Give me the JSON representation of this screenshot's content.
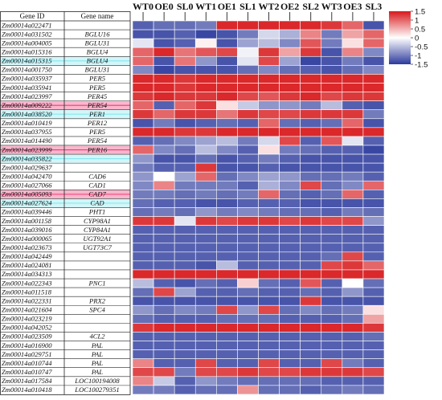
{
  "chart_data": {
    "type": "heatmap",
    "table_headers": [
      "Gene ID",
      "Gene name"
    ],
    "columns": [
      "WT0",
      "OE0",
      "SL0",
      "WT1",
      "OE1",
      "SL1",
      "WT2",
      "OE2",
      "SL2",
      "WT3",
      "OE3",
      "SL3"
    ],
    "rows": [
      {
        "id": "Zm00014a022471",
        "name": "",
        "values": [
          -1.2,
          -1.1,
          -1.1,
          -1.0,
          1.4,
          1.4,
          1.4,
          1.4,
          1.4,
          1.3,
          1.0,
          -1.3
        ]
      },
      {
        "id": "Zm00014a031502",
        "name": "BGLU16",
        "values": [
          -1.3,
          -1.3,
          -1.2,
          -1.4,
          -1.3,
          -1.0,
          -0.3,
          -0.6,
          0.8,
          -1.0,
          0.6,
          1.0
        ]
      },
      {
        "id": "Zm00014a004005",
        "name": "BGLU31",
        "values": [
          -0.2,
          -1.3,
          -1.2,
          0.1,
          -1.3,
          -0.7,
          -0.5,
          -0.9,
          1.1,
          -1.0,
          0.2,
          1.0
        ]
      },
      {
        "id": "Zm00014a015316",
        "name": "BGLU4",
        "values": [
          1.0,
          1.4,
          0.9,
          1.1,
          1.2,
          -0.1,
          1.3,
          0.6,
          1.3,
          -1.3,
          0.8,
          -0.9
        ]
      },
      {
        "id": "Zm00014a015315",
        "name": "BGLU4",
        "values": [
          1.0,
          -1.3,
          0.9,
          -0.8,
          -1.3,
          -0.2,
          1.2,
          -0.7,
          -1.4,
          -1.3,
          -1.0,
          -1.3
        ]
      },
      {
        "id": "Zm00014a001750",
        "name": "BGLU31",
        "values": [
          -0.9,
          -1.4,
          -1.3,
          -1.3,
          -1.3,
          -1.1,
          -0.9,
          -1.1,
          -1.2,
          -1.3,
          -1.1,
          -0.9
        ]
      },
      {
        "id": "Zm00014a035937",
        "name": "PER5",
        "values": [
          1.4,
          1.4,
          1.3,
          1.4,
          1.4,
          1.4,
          1.4,
          1.4,
          1.4,
          1.4,
          1.4,
          1.4
        ]
      },
      {
        "id": "Zm00014a035941",
        "name": "PER5",
        "values": [
          1.4,
          1.4,
          1.3,
          1.4,
          1.4,
          1.4,
          1.4,
          1.4,
          1.4,
          1.4,
          1.4,
          1.4
        ]
      },
      {
        "id": "Zm00014a023997",
        "name": "PER45",
        "values": [
          1.3,
          1.4,
          1.3,
          1.3,
          1.4,
          1.2,
          1.1,
          1.3,
          1.4,
          1.2,
          1.3,
          1.3
        ]
      },
      {
        "id": "Zm00014a009222",
        "name": "PER54",
        "values": [
          1.0,
          -1.2,
          1.0,
          1.3,
          0.2,
          -0.4,
          -0.8,
          -0.8,
          -1.0,
          -0.5,
          -1.2,
          -1.3
        ]
      },
      {
        "id": "Zm00014a038520",
        "name": "PER1",
        "values": [
          1.3,
          1.0,
          1.3,
          1.3,
          0.9,
          1.3,
          1.2,
          1.2,
          1.3,
          1.3,
          1.3,
          -1.0
        ]
      },
      {
        "id": "Zm00014a010419",
        "name": "PER12",
        "values": [
          -1.3,
          -1.0,
          -1.3,
          -1.2,
          -1.1,
          -1.2,
          1.0,
          -1.1,
          -1.2,
          -1.1,
          1.0,
          -1.3
        ]
      },
      {
        "id": "Zm00014a037955",
        "name": "PER5",
        "values": [
          1.4,
          1.4,
          1.3,
          1.3,
          1.4,
          1.4,
          1.4,
          1.4,
          1.4,
          1.4,
          1.4,
          1.4
        ]
      },
      {
        "id": "Zm00014a014490",
        "name": "PER54",
        "values": [
          -1.2,
          -1.1,
          -0.9,
          -0.7,
          -0.5,
          -1.0,
          -0.3,
          1.2,
          -1.2,
          1.1,
          -0.2,
          -1.2
        ]
      },
      {
        "id": "Zm00014a023999",
        "name": "PER16",
        "values": [
          1.0,
          -0.9,
          -1.1,
          -0.5,
          -0.9,
          -1.2,
          0.2,
          -1.0,
          -1.1,
          -1.2,
          -1.2,
          -1.4
        ]
      },
      {
        "id": "Zm00014a035822",
        "name": "",
        "values": [
          -0.8,
          -1.3,
          -1.3,
          -1.1,
          -1.3,
          -1.2,
          -1.0,
          -1.2,
          -1.3,
          -1.3,
          -1.3,
          -1.3
        ]
      },
      {
        "id": "Zm00014a029637",
        "name": "",
        "values": [
          -1.0,
          -1.2,
          -1.2,
          1.3,
          -1.3,
          -1.3,
          -1.2,
          -1.3,
          -1.3,
          -1.3,
          -1.3,
          -1.3
        ]
      },
      {
        "id": "Zm00014a042470",
        "name": "CAD6",
        "values": [
          -0.8,
          0.0,
          -0.7,
          1.0,
          -1.1,
          -0.9,
          -0.7,
          -0.8,
          -1.1,
          -1.1,
          -1.0,
          -1.2
        ]
      },
      {
        "id": "Zm00014a027066",
        "name": "CAD1",
        "values": [
          -0.9,
          0.8,
          -1.0,
          -1.0,
          -1.0,
          -1.2,
          -0.6,
          -0.9,
          1.2,
          -1.1,
          -0.9,
          1.0
        ]
      },
      {
        "id": "Zm00014a005093",
        "name": "CAD7",
        "values": [
          -1.0,
          -1.0,
          -1.1,
          -1.0,
          -1.1,
          -1.0,
          1.0,
          -1.1,
          -1.2,
          -1.1,
          1.0,
          -1.2
        ]
      },
      {
        "id": "Zm00014a027624",
        "name": "CAD",
        "values": [
          -1.1,
          -1.2,
          -1.2,
          -1.3,
          -1.3,
          -1.2,
          -1.2,
          -1.2,
          -1.3,
          -1.3,
          -1.3,
          -1.3
        ]
      },
      {
        "id": "Zm00014a039446",
        "name": "PHT1",
        "values": [
          -1.1,
          -1.0,
          -1.1,
          -0.8,
          -1.0,
          -0.9,
          -1.0,
          -1.1,
          -1.1,
          -1.2,
          -1.0,
          -1.1
        ]
      },
      {
        "id": "Zm00014a001158",
        "name": "CYP98A1",
        "values": [
          1.3,
          1.3,
          -0.2,
          1.3,
          1.2,
          1.3,
          1.3,
          1.2,
          1.3,
          1.2,
          1.2,
          -0.8
        ]
      },
      {
        "id": "Zm00014a039016",
        "name": "CYP84A1",
        "values": [
          -1.2,
          -1.2,
          -1.2,
          -1.2,
          -1.2,
          -1.2,
          -1.2,
          -1.2,
          -1.2,
          -1.2,
          -1.2,
          -1.2
        ]
      },
      {
        "id": "Zm00014a000065",
        "name": "UGT92A1",
        "values": [
          -1.2,
          -1.2,
          -1.2,
          -1.2,
          -1.2,
          -1.2,
          -1.2,
          -1.2,
          -1.2,
          -1.2,
          -1.2,
          -1.2
        ]
      },
      {
        "id": "Zm00014a023673",
        "name": "UGT73C7",
        "values": [
          -1.2,
          -1.2,
          -1.2,
          -1.2,
          -1.2,
          -1.2,
          -1.2,
          -1.2,
          -1.2,
          -1.2,
          -1.2,
          -1.2
        ]
      },
      {
        "id": "Zm00014a042449",
        "name": "",
        "values": [
          -1.2,
          -1.2,
          -1.2,
          -1.2,
          -1.2,
          -1.2,
          -1.2,
          -1.2,
          -1.2,
          -1.1,
          1.2,
          -1.2
        ]
      },
      {
        "id": "Zm00014a024081",
        "name": "",
        "values": [
          -1.2,
          -1.2,
          -1.2,
          -1.3,
          -0.5,
          -1.2,
          -1.2,
          -1.2,
          -1.2,
          1.2,
          1.3,
          1.0
        ]
      },
      {
        "id": "Zm00014a034313",
        "name": "",
        "values": [
          1.4,
          1.4,
          1.4,
          1.4,
          1.4,
          1.4,
          1.4,
          1.4,
          1.4,
          1.4,
          1.4,
          1.4
        ]
      },
      {
        "id": "Zm00014a022343",
        "name": "PNC1",
        "values": [
          -0.5,
          -1.2,
          -1.3,
          -1.1,
          -1.2,
          0.3,
          -1.1,
          -1.2,
          1.1,
          -1.2,
          0.0,
          -1.1
        ]
      },
      {
        "id": "Zm00014a011518",
        "name": "",
        "values": [
          -1.1,
          1.2,
          -0.7,
          -1.2,
          -1.2,
          -1.1,
          -1.2,
          -1.2,
          -1.1,
          -1.2,
          -0.8,
          -1.2
        ]
      },
      {
        "id": "Zm00014a022331",
        "name": "PRX2",
        "values": [
          -1.3,
          -1.3,
          -1.3,
          -1.3,
          -1.3,
          -1.3,
          -1.3,
          -1.3,
          1.3,
          -1.3,
          -1.3,
          -1.3
        ]
      },
      {
        "id": "Zm00014a021604",
        "name": "SPC4",
        "values": [
          -0.8,
          -1.1,
          -0.9,
          -1.0,
          1.2,
          -0.8,
          1.2,
          -1.1,
          -0.9,
          -1.1,
          -1.0,
          0.2
        ]
      },
      {
        "id": "Zm00014a023219",
        "name": "",
        "values": [
          -1.1,
          -1.2,
          -1.2,
          -1.2,
          -1.1,
          -1.1,
          -1.1,
          -1.2,
          -1.2,
          -1.2,
          -1.1,
          0.6
        ]
      },
      {
        "id": "Zm00014a042052",
        "name": "",
        "values": [
          1.3,
          1.4,
          1.4,
          1.4,
          1.4,
          1.4,
          1.4,
          1.4,
          1.4,
          1.4,
          1.4,
          1.3
        ]
      },
      {
        "id": "Zm00014a023509",
        "name": "4CL2",
        "values": [
          -1.2,
          -1.2,
          -1.2,
          -1.2,
          -1.2,
          -1.2,
          -1.2,
          -1.2,
          -1.2,
          -1.2,
          -1.2,
          -1.1
        ]
      },
      {
        "id": "Zm00014a016900",
        "name": "PAL",
        "values": [
          -1.2,
          -1.2,
          -1.2,
          -1.2,
          -1.2,
          -1.2,
          -1.2,
          -1.2,
          -1.2,
          -1.2,
          -1.2,
          -1.2
        ]
      },
      {
        "id": "Zm00014a029751",
        "name": "PAL",
        "values": [
          -1.2,
          -1.2,
          -1.2,
          -1.2,
          -1.2,
          -1.2,
          -1.2,
          -1.2,
          -1.2,
          -1.2,
          -1.2,
          -1.2
        ]
      },
      {
        "id": "Zm00014a010744",
        "name": "PAL",
        "values": [
          0.8,
          -1.2,
          -1.2,
          1.2,
          -1.2,
          -1.2,
          1.2,
          -1.2,
          -1.2,
          1.2,
          -1.0,
          -1.2
        ]
      },
      {
        "id": "Zm00014a010747",
        "name": "PAL",
        "values": [
          1.2,
          1.2,
          -1.0,
          1.2,
          1.2,
          1.3,
          1.2,
          1.2,
          1.3,
          1.3,
          1.3,
          1.2
        ]
      },
      {
        "id": "Zm00014a017584",
        "name": "LOC100194008",
        "values": [
          0.8,
          -0.4,
          -1.2,
          -0.8,
          -1.0,
          -1.1,
          -1.1,
          -1.1,
          -1.1,
          -1.2,
          -1.2,
          -1.2
        ]
      },
      {
        "id": "Zm00014a010418",
        "name": "LOC100279351",
        "values": [
          -1.0,
          -1.0,
          -1.2,
          -1.1,
          -1.1,
          0.7,
          -1.1,
          -1.1,
          -1.2,
          -1.1,
          -1.0,
          -1.1
        ]
      }
    ],
    "highlighted_rows": [
      {
        "index": 4,
        "color": "#7ee6ee"
      },
      {
        "index": 9,
        "color": "#ee2f6e"
      },
      {
        "index": 10,
        "color": "#7ee6ee"
      },
      {
        "index": 14,
        "color": "#ee2f6e"
      },
      {
        "index": 15,
        "color": "#7ee6ee"
      },
      {
        "index": 19,
        "color": "#ee2f6e"
      },
      {
        "index": 20,
        "color": "#7ee6ee"
      }
    ],
    "colorscale": {
      "min": -1.5,
      "max": 1.5,
      "low_color": "#2b3a9c",
      "mid_color": "#ffffff",
      "high_color": "#d7191c",
      "ticks": [
        1.5,
        1,
        0.5,
        0,
        -0.5,
        -1,
        -1.5
      ],
      "tick_labels": [
        "1.5",
        "1",
        "0.5",
        "0",
        "-0.5",
        "-1",
        "-1.5"
      ]
    },
    "dendrogram": "top",
    "grid_lines_color": "#ffffff"
  }
}
